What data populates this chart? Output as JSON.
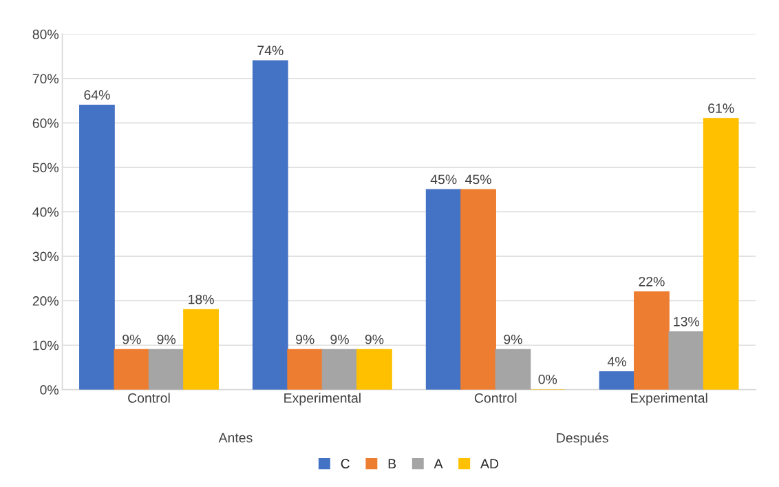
{
  "chart_data": {
    "type": "bar",
    "categories": [
      "Control",
      "Experimental",
      "Control",
      "Experimental"
    ],
    "annotations": [
      "Antes",
      "Después"
    ],
    "series": [
      {
        "name": "C",
        "color": "#4472c4",
        "values": [
          64,
          74,
          45,
          4
        ],
        "value_labels": [
          "64%",
          "74%",
          "45%",
          "4%"
        ]
      },
      {
        "name": "B",
        "color": "#ed7d31",
        "values": [
          9,
          9,
          45,
          22
        ],
        "value_labels": [
          "9%",
          "9%",
          "45%",
          "22%"
        ]
      },
      {
        "name": "A",
        "color": "#a5a5a5",
        "values": [
          9,
          9,
          9,
          13
        ],
        "value_labels": [
          "9%",
          "9%",
          "9%",
          "13%"
        ]
      },
      {
        "name": "AD",
        "color": "#ffc000",
        "values": [
          18,
          9,
          0,
          61
        ],
        "value_labels": [
          "18%",
          "9%",
          "0%",
          "61%"
        ]
      }
    ],
    "ylim": [
      0,
      80
    ],
    "yticks": [
      {
        "value": 0,
        "label": "0%"
      },
      {
        "value": 10,
        "label": "10%"
      },
      {
        "value": 20,
        "label": "20%"
      },
      {
        "value": 30,
        "label": "30%"
      },
      {
        "value": 40,
        "label": "40%"
      },
      {
        "value": 50,
        "label": "50%"
      },
      {
        "value": 60,
        "label": "60%"
      },
      {
        "value": 70,
        "label": "70%"
      },
      {
        "value": 80,
        "label": "80%"
      }
    ],
    "grid": "y",
    "legend": "bottom"
  }
}
